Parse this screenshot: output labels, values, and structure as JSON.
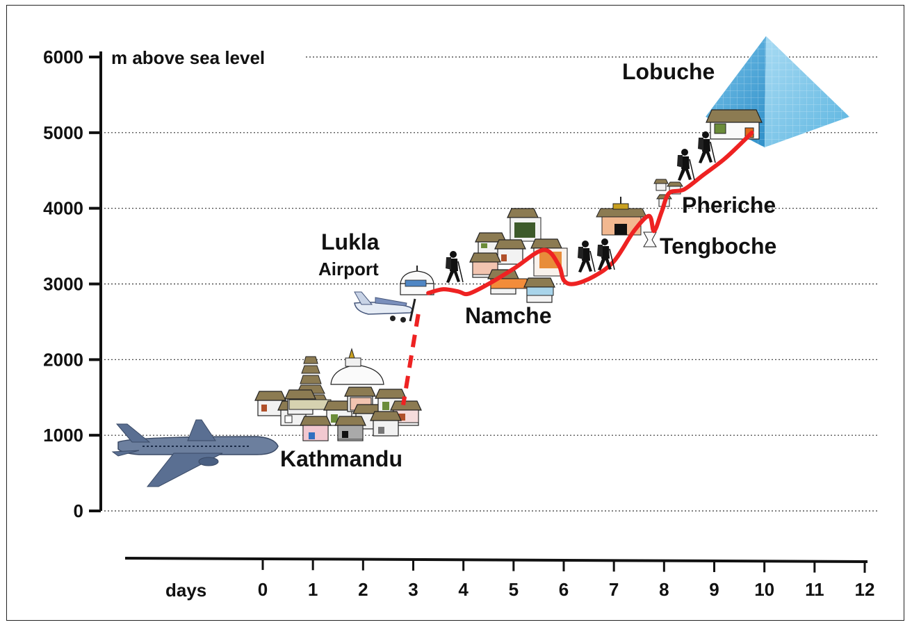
{
  "chart_data": {
    "type": "line",
    "ylabel": "m above sea level",
    "xlabel": "days",
    "y_ticks": [
      "0",
      "1000",
      "2000",
      "3000",
      "4000",
      "5000",
      "6000"
    ],
    "x_ticks": [
      "0",
      "1",
      "2",
      "3",
      "4",
      "5",
      "6",
      "7",
      "8",
      "9",
      "10",
      "11",
      "12"
    ],
    "ylim": [
      0,
      6000
    ],
    "xlim": [
      0,
      12
    ],
    "grid": "dotted horizontal",
    "series": [
      {
        "style": "solid red",
        "x": [
          3.3,
          3.6,
          3.9,
          4.1,
          4.5,
          5.0,
          5.6,
          5.9,
          6.0,
          6.2,
          6.6,
          7.0,
          7.4,
          7.7,
          7.8,
          7.95,
          8.1,
          8.4,
          8.8,
          9.2,
          9.6,
          9.75
        ],
        "y": [
          2880,
          2930,
          2900,
          2870,
          3000,
          3200,
          3450,
          3250,
          3050,
          3000,
          3100,
          3300,
          3700,
          3900,
          3700,
          3950,
          4200,
          4250,
          4450,
          4650,
          4900,
          5000
        ]
      },
      {
        "style": "dashed red",
        "x": [
          3.1,
          2.8
        ],
        "y": [
          2600,
          1400
        ]
      }
    ],
    "annotations": [
      "Lobuche",
      "Pheriche",
      "Tengboche",
      "Namche",
      "Lukla",
      "Airport",
      "Kathmandu"
    ],
    "colors": {
      "route": "#ee2222",
      "pyramid": "#5ab4e0",
      "roof": "#8c7b52"
    }
  }
}
